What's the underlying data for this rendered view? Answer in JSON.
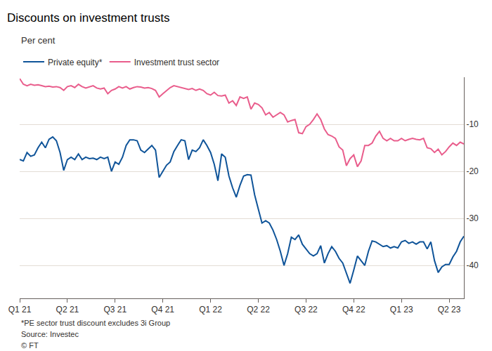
{
  "chart_data": {
    "type": "line",
    "title": "Discounts on investment trusts",
    "subtitle": "Per cent",
    "categories": [
      "Q1 21",
      null,
      null,
      null,
      null,
      null,
      null,
      null,
      null,
      null,
      null,
      null,
      null,
      "Q2 21",
      null,
      null,
      null,
      null,
      null,
      null,
      null,
      null,
      null,
      null,
      null,
      null,
      "Q3 21",
      null,
      null,
      null,
      null,
      null,
      null,
      null,
      null,
      null,
      null,
      null,
      null,
      "Q4 21",
      null,
      null,
      null,
      null,
      null,
      null,
      null,
      null,
      null,
      null,
      null,
      null,
      "Q1 22",
      null,
      null,
      null,
      null,
      null,
      null,
      null,
      null,
      null,
      null,
      null,
      null,
      "Q2 22",
      null,
      null,
      null,
      null,
      null,
      null,
      null,
      null,
      null,
      null,
      null,
      null,
      "Q3 22",
      null,
      null,
      null,
      null,
      null,
      null,
      null,
      null,
      null,
      null,
      null,
      null,
      "Q4 22",
      null,
      null,
      null,
      null,
      null,
      null,
      null,
      null,
      null,
      null,
      null,
      null,
      "Q1 23",
      null,
      null,
      null,
      null,
      null,
      null,
      null,
      null,
      null,
      null,
      null,
      null,
      "Q2 23",
      null,
      null,
      null,
      null
    ],
    "series": [
      {
        "name": "Private equity*",
        "color": "#0f5499",
        "values": [
          -17.5,
          -17.8,
          -16,
          -16.8,
          -16.5,
          -15,
          -13.8,
          -15,
          -13.2,
          -12.7,
          -13.5,
          -16,
          -19.8,
          -17.5,
          -17,
          -17.5,
          -16.3,
          -17.5,
          -17,
          -17.3,
          -17.2,
          -17.5,
          -17,
          -17.3,
          -17,
          -20,
          -18,
          -18.5,
          -17,
          -14.5,
          -13.3,
          -13.3,
          -13.5,
          -15.5,
          -16,
          -15.2,
          -14.5,
          -15.5,
          -21.3,
          -20,
          -18.7,
          -18,
          -15.8,
          -14.5,
          -13.3,
          -13.5,
          -17.5,
          -15.5,
          -15.8,
          -15,
          -13.3,
          -14.5,
          -16,
          -18.5,
          -22,
          -16.3,
          -17,
          -21,
          -23.5,
          -25.5,
          -23,
          -21,
          -20.7,
          -20.8,
          -25,
          -28,
          -31,
          -30.5,
          -31,
          -32.5,
          -34.5,
          -37,
          -40,
          -37.5,
          -34,
          -34.5,
          -33.5,
          -35.5,
          -36.5,
          -37.5,
          -38,
          -37.5,
          -35.8,
          -39.5,
          -37.5,
          -36,
          -37,
          -38.5,
          -39.5,
          -41.5,
          -43.8,
          -41,
          -38,
          -39,
          -40,
          -37,
          -34.8,
          -35,
          -35.5,
          -36,
          -35.8,
          -36.3,
          -36,
          -36.3,
          -35,
          -34.7,
          -35.3,
          -35,
          -35.5,
          -35,
          -35,
          -36.5,
          -35,
          -39,
          -41.5,
          -40.3,
          -39.8,
          -39.8,
          -38.2,
          -37,
          -35,
          -33.8
        ]
      },
      {
        "name": "Investment trust sector",
        "color": "#e95d8c",
        "values": [
          -0.3,
          -1.5,
          -1.8,
          -1.5,
          -1.7,
          -1.6,
          -1.8,
          -2,
          -1.9,
          -2.1,
          -2,
          -2.2,
          -2.8,
          -2,
          -1.8,
          -2.2,
          -1.5,
          -2,
          -2.3,
          -2,
          -1.8,
          -2.3,
          -2.5,
          -2.3,
          -3.5,
          -2.8,
          -2.5,
          -2,
          -2.3,
          -2,
          -2.5,
          -2.2,
          -2,
          -2.1,
          -2.3,
          -2.2,
          -2.4,
          -2.8,
          -4.2,
          -3.5,
          -2.8,
          -2.2,
          -1.8,
          -2,
          -2.2,
          -2.5,
          -2.6,
          -2.4,
          -2.8,
          -2.5,
          -2.8,
          -3.5,
          -3.8,
          -3.2,
          -3.9,
          -4,
          -3.8,
          -5.5,
          -5,
          -6,
          -4.2,
          -4.5,
          -4.2,
          -6.8,
          -5.5,
          -5.8,
          -6.5,
          -8,
          -7.5,
          -8.5,
          -8,
          -7.5,
          -8,
          -9.5,
          -9.2,
          -9,
          -11.8,
          -12,
          -10.5,
          -10,
          -9,
          -7.8,
          -9,
          -11,
          -12.2,
          -12.5,
          -13,
          -14.8,
          -15.5,
          -18.8,
          -17.3,
          -16.5,
          -19,
          -17.8,
          -14.5,
          -14.5,
          -14,
          -12.5,
          -11.5,
          -13,
          -13.5,
          -13,
          -13.5,
          -13.5,
          -13,
          -13.5,
          -13.2,
          -13,
          -13.2,
          -13.3,
          -13,
          -15,
          -15.2,
          -16,
          -15.3,
          -16.5,
          -15.8,
          -14.8,
          -14,
          -14.5,
          -13.8,
          -14.2
        ]
      }
    ],
    "ylim": [
      -47,
      0
    ],
    "yticks": [
      -40,
      -30,
      -20,
      -10
    ],
    "grid": true,
    "legend": "top left",
    "annotations": [
      "*PE sector trust discount excludes 3i Group",
      "Source: Investec",
      "© FT"
    ]
  }
}
